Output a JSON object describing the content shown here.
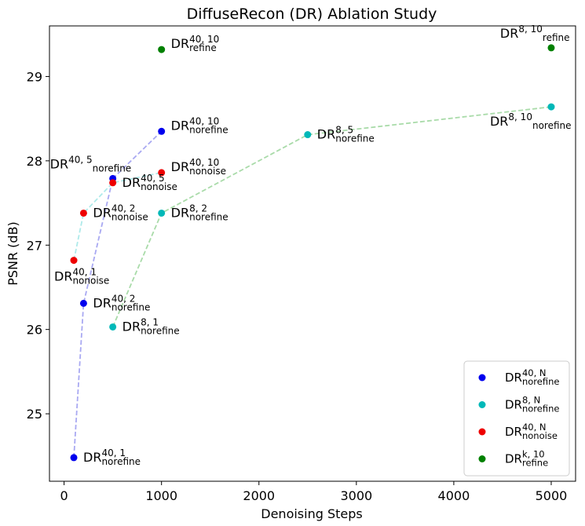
{
  "chart_data": {
    "type": "scatter",
    "title": "DiffuseRecon (DR) Ablation Study",
    "xlabel": "Denoising Steps",
    "ylabel": "PSNR (dB)",
    "xlim": [
      -150,
      5250
    ],
    "ylim": [
      24.2,
      29.6
    ],
    "xticks": [
      0,
      1000,
      2000,
      3000,
      4000,
      5000
    ],
    "yticks": [
      25,
      26,
      27,
      28,
      29
    ],
    "series": [
      {
        "name": "DR^{40,N}_{norefine}",
        "color": "#0000ee",
        "line_color": "#a9a9f2",
        "connected": true,
        "points": [
          {
            "x": 100,
            "y": 24.48,
            "label": "DR^{40,1}_{norefine}",
            "base": "DR",
            "sup": "40, 1",
            "sub": "norefine",
            "placement": "right-low"
          },
          {
            "x": 200,
            "y": 26.31,
            "label": "DR^{40,2}_{norefine}",
            "base": "DR",
            "sup": "40, 2",
            "sub": "norefine",
            "placement": "right-low"
          },
          {
            "x": 500,
            "y": 27.79,
            "label": "DR^{40,5}_{norefine}",
            "base": "DR",
            "sup": "40, 5",
            "sub": "norefine",
            "placement": "left-high"
          },
          {
            "x": 1000,
            "y": 28.35,
            "label": "DR^{40,10}_{norefine}",
            "base": "DR",
            "sup": "40, 10",
            "sub": "norefine",
            "placement": "right-high"
          }
        ]
      },
      {
        "name": "DR^{8,N}_{norefine}",
        "color": "#00b8b8",
        "line_color": "#a9dba9",
        "connected": true,
        "points": [
          {
            "x": 500,
            "y": 26.03,
            "label": "DR^{8,1}_{norefine}",
            "base": "DR",
            "sup": "8, 1",
            "sub": "norefine",
            "placement": "right-low"
          },
          {
            "x": 1000,
            "y": 27.38,
            "label": "DR^{8,2}_{norefine}",
            "base": "DR",
            "sup": "8, 2",
            "sub": "norefine",
            "placement": "right-low"
          },
          {
            "x": 2500,
            "y": 28.31,
            "label": "DR^{8,5}_{norefine}",
            "base": "DR",
            "sup": "8, 5",
            "sub": "norefine",
            "placement": "right-low"
          },
          {
            "x": 5000,
            "y": 28.64,
            "label": "DR^{8,10}_{norefine}",
            "base": "DR",
            "sup": "8, 10",
            "sub": "norefine",
            "placement": "left-low"
          }
        ]
      },
      {
        "name": "DR^{40,N}_{nonoise}",
        "color": "#ee0000",
        "line_color": "#aeeaea",
        "connected": true,
        "points": [
          {
            "x": 100,
            "y": 26.82,
            "label": "DR^{40,1}_{nonoise}",
            "base": "DR",
            "sup": "40, 1",
            "sub": "nonoise",
            "placement": "below"
          },
          {
            "x": 200,
            "y": 27.38,
            "label": "DR^{40,2}_{nonoise}",
            "base": "DR",
            "sup": "40, 2",
            "sub": "nonoise",
            "placement": "right-low"
          },
          {
            "x": 500,
            "y": 27.74,
            "label": "DR^{40,5}_{nonoise}",
            "base": "DR",
            "sup": "40, 5",
            "sub": "nonoise",
            "placement": "right-low"
          },
          {
            "x": 1000,
            "y": 27.86,
            "label": "DR^{40,10}_{nonoise}",
            "base": "DR",
            "sup": "40, 10",
            "sub": "nonoise",
            "placement": "right-high"
          }
        ]
      },
      {
        "name": "DR^{k,10}_{refine}",
        "color": "#008000",
        "connected": false,
        "points": [
          {
            "x": 1000,
            "y": 29.32,
            "label": "DR^{40,10}_{refine}",
            "base": "DR",
            "sup": "40, 10",
            "sub": "refine",
            "placement": "right-high"
          },
          {
            "x": 5000,
            "y": 29.34,
            "label": "DR^{8,10}_{refine}",
            "base": "DR",
            "sup": "8, 10",
            "sub": "refine",
            "placement": "left-high"
          }
        ]
      }
    ],
    "legend": {
      "placement": "lower-right",
      "entries": [
        {
          "base": "DR",
          "sup": "40, N",
          "sub": "norefine",
          "color": "#0000ee"
        },
        {
          "base": "DR",
          "sup": "8, N",
          "sub": "norefine",
          "color": "#00b8b8"
        },
        {
          "base": "DR",
          "sup": "40, N",
          "sub": "nonoise",
          "color": "#ee0000"
        },
        {
          "base": "DR",
          "sup": "k, 10",
          "sub": "refine",
          "color": "#008000"
        }
      ]
    }
  }
}
